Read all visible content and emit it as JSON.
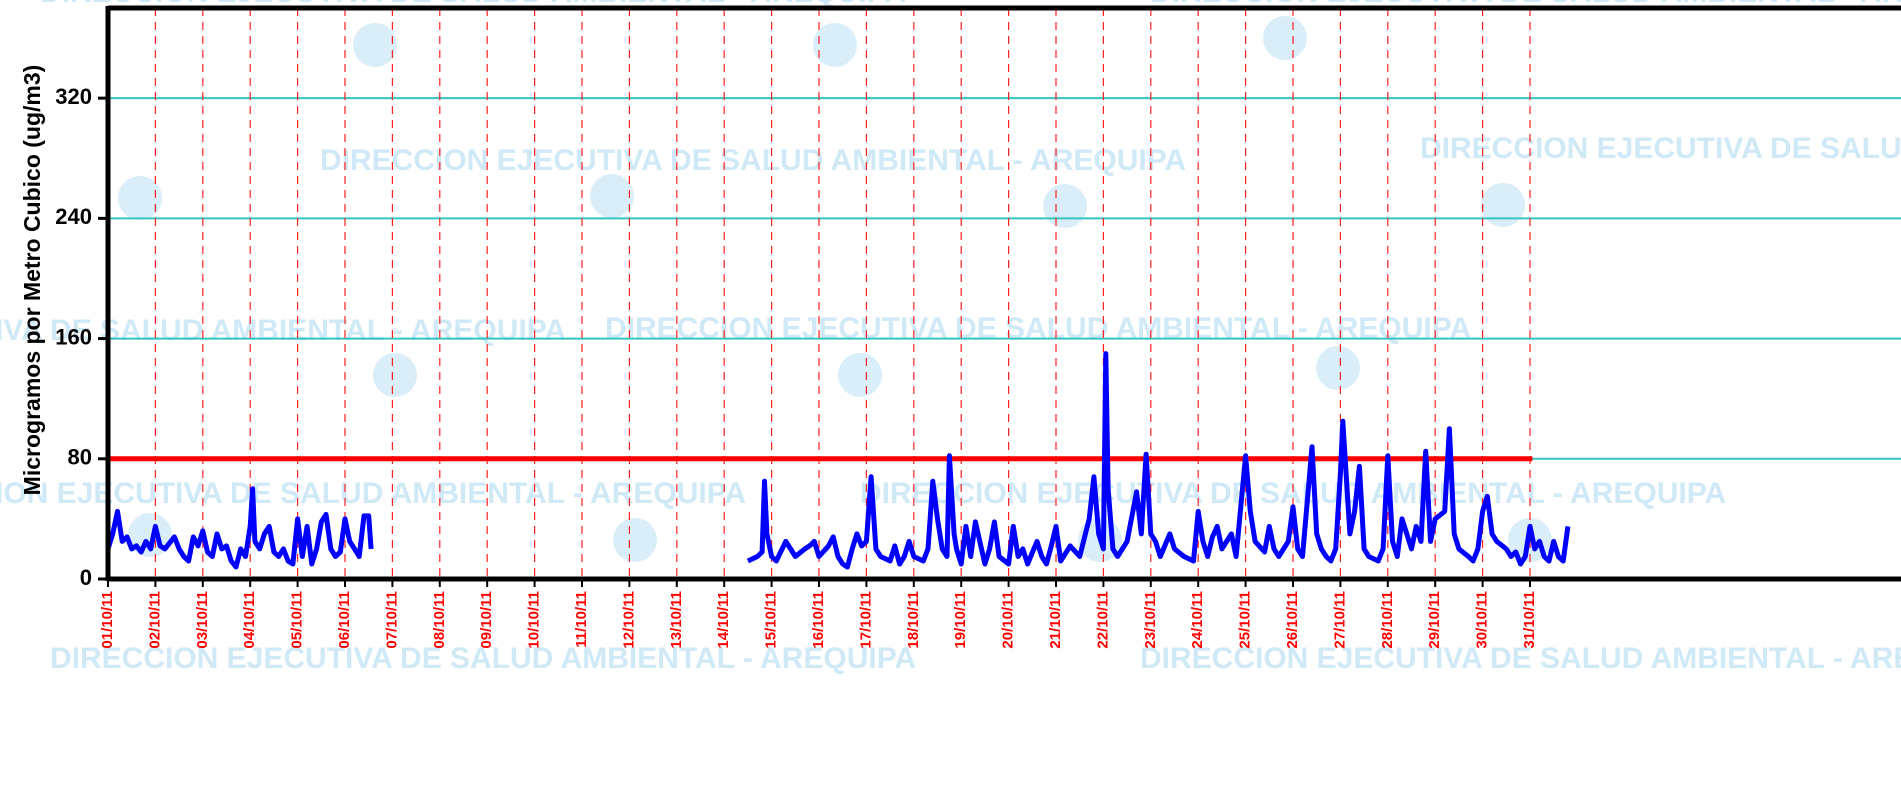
{
  "chart_data": {
    "type": "line",
    "y_label": "Microgramos por Metro Cubico (ug/m3)",
    "watermark": "DIRECCION EJECUTIVA DE SALUD AMBIENTAL - AREQUIPA",
    "xlim": [
      0,
      30.8
    ],
    "ylim": [
      0,
      380
    ],
    "yticks": [
      0,
      80,
      160,
      240,
      320
    ],
    "xticks": [
      {
        "value": 0,
        "label": "01/10/11"
      },
      {
        "value": 1,
        "label": "02/10/11"
      },
      {
        "value": 2,
        "label": "03/10/11"
      },
      {
        "value": 3,
        "label": "04/10/11"
      },
      {
        "value": 4,
        "label": "05/10/11"
      },
      {
        "value": 5,
        "label": "06/10/11"
      },
      {
        "value": 6,
        "label": "07/10/11"
      },
      {
        "value": 7,
        "label": "08/10/11"
      },
      {
        "value": 8,
        "label": "09/10/11"
      },
      {
        "value": 9,
        "label": "10/10/11"
      },
      {
        "value": 10,
        "label": "11/10/11"
      },
      {
        "value": 11,
        "label": "12/10/11"
      },
      {
        "value": 12,
        "label": "13/10/11"
      },
      {
        "value": 13,
        "label": "14/10/11"
      },
      {
        "value": 14,
        "label": "15/10/11"
      },
      {
        "value": 15,
        "label": "16/10/11"
      },
      {
        "value": 16,
        "label": "17/10/11"
      },
      {
        "value": 17,
        "label": "18/10/11"
      },
      {
        "value": 18,
        "label": "19/10/11"
      },
      {
        "value": 19,
        "label": "20/10/11"
      },
      {
        "value": 20,
        "label": "21/10/11"
      },
      {
        "value": 21,
        "label": "22/10/11"
      },
      {
        "value": 22,
        "label": "23/10/11"
      },
      {
        "value": 23,
        "label": "24/10/11"
      },
      {
        "value": 24,
        "label": "25/10/11"
      },
      {
        "value": 25,
        "label": "26/10/11"
      },
      {
        "value": 26,
        "label": "27/10/11"
      },
      {
        "value": 27,
        "label": "28/10/11"
      },
      {
        "value": 28,
        "label": "29/10/11"
      },
      {
        "value": 29,
        "label": "30/10/11"
      },
      {
        "value": 30,
        "label": "31/10/11"
      }
    ],
    "grid": true,
    "reference_line": {
      "value": 80,
      "color": "#ff0000",
      "x": [
        0,
        30.05
      ]
    },
    "x": [
      0.0,
      0.1,
      0.2,
      0.3,
      0.4,
      0.5,
      0.6,
      0.7,
      0.8,
      0.9,
      1.0,
      1.1,
      1.2,
      1.3,
      1.4,
      1.5,
      1.6,
      1.7,
      1.8,
      1.9,
      2.0,
      2.1,
      2.2,
      2.3,
      2.4,
      2.5,
      2.6,
      2.7,
      2.8,
      2.9,
      3.0,
      3.05,
      3.1,
      3.2,
      3.3,
      3.4,
      3.5,
      3.6,
      3.7,
      3.8,
      3.9,
      4.0,
      4.1,
      4.2,
      4.3,
      4.4,
      4.5,
      4.6,
      4.7,
      4.8,
      4.9,
      5.0,
      5.1,
      5.2,
      5.3,
      5.4,
      5.5,
      5.55,
      6.0,
      13.5,
      13.7,
      13.8,
      13.85,
      13.9,
      14.0,
      14.1,
      14.3,
      14.4,
      14.5,
      14.7,
      14.8,
      14.9,
      15.0,
      15.2,
      15.3,
      15.4,
      15.5,
      15.6,
      15.7,
      15.8,
      15.9,
      16.0,
      16.1,
      16.2,
      16.3,
      16.5,
      16.6,
      16.7,
      16.8,
      16.9,
      17.0,
      17.2,
      17.3,
      17.4,
      17.5,
      17.6,
      17.7,
      17.75,
      17.85,
      17.9,
      18.0,
      18.1,
      18.2,
      18.3,
      18.5,
      18.6,
      18.7,
      18.8,
      19.0,
      19.1,
      19.2,
      19.3,
      19.4,
      19.6,
      19.7,
      19.8,
      19.9,
      20.0,
      20.1,
      20.3,
      20.5,
      20.7,
      20.8,
      20.9,
      21.0,
      21.05,
      21.1,
      21.2,
      21.3,
      21.5,
      21.7,
      21.8,
      21.9,
      22.0,
      22.1,
      22.2,
      22.4,
      22.5,
      22.7,
      22.9,
      23.0,
      23.1,
      23.2,
      23.3,
      23.4,
      23.5,
      23.7,
      23.8,
      24.0,
      24.1,
      24.2,
      24.4,
      24.5,
      24.6,
      24.7,
      24.9,
      25.0,
      25.1,
      25.2,
      25.4,
      25.5,
      25.6,
      25.7,
      25.8,
      25.9,
      26.0,
      26.05,
      26.2,
      26.3,
      26.4,
      26.5,
      26.6,
      26.8,
      26.9,
      27.0,
      27.1,
      27.2,
      27.3,
      27.4,
      27.5,
      27.6,
      27.7,
      27.8,
      27.9,
      28.0,
      28.2,
      28.3,
      28.4,
      28.5,
      28.7,
      28.8,
      28.9,
      29.0,
      29.1,
      29.2,
      29.3,
      29.5,
      29.6,
      29.7,
      29.8,
      29.9,
      30.0,
      30.1,
      30.2,
      30.3,
      30.4,
      30.5,
      30.6,
      30.7,
      30.8
    ],
    "series": [
      {
        "color": "#0000ff",
        "values": [
          20,
          30,
          45,
          25,
          28,
          20,
          22,
          18,
          25,
          20,
          35,
          22,
          20,
          24,
          28,
          20,
          15,
          12,
          28,
          22,
          32,
          18,
          15,
          30,
          20,
          22,
          12,
          8,
          20,
          15,
          35,
          60,
          25,
          20,
          30,
          35,
          18,
          15,
          20,
          12,
          10,
          40,
          15,
          35,
          10,
          20,
          38,
          43,
          20,
          15,
          18,
          40,
          25,
          20,
          15,
          42,
          42,
          20,
          null,
          12,
          15,
          18,
          65,
          30,
          15,
          12,
          25,
          20,
          15,
          20,
          22,
          25,
          15,
          22,
          28,
          15,
          10,
          8,
          20,
          30,
          22,
          25,
          68,
          20,
          15,
          12,
          22,
          10,
          15,
          25,
          15,
          12,
          20,
          65,
          40,
          20,
          15,
          82,
          30,
          20,
          10,
          35,
          15,
          38,
          10,
          20,
          38,
          15,
          10,
          35,
          15,
          20,
          10,
          25,
          15,
          10,
          22,
          35,
          12,
          22,
          15,
          40,
          68,
          30,
          20,
          150,
          60,
          20,
          15,
          25,
          58,
          30,
          83,
          30,
          25,
          15,
          30,
          20,
          15,
          12,
          45,
          25,
          15,
          28,
          35,
          20,
          30,
          15,
          82,
          45,
          25,
          18,
          35,
          20,
          15,
          25,
          48,
          20,
          15,
          88,
          30,
          20,
          15,
          12,
          20,
          70,
          105,
          30,
          45,
          75,
          20,
          15,
          12,
          20,
          82,
          25,
          15,
          40,
          30,
          20,
          35,
          25,
          85,
          25,
          40,
          45,
          100,
          30,
          20,
          15,
          12,
          20,
          45,
          55,
          30,
          25,
          20,
          15,
          18,
          10,
          15,
          35,
          20,
          25,
          15,
          12,
          25,
          15,
          12,
          35
        ]
      }
    ]
  }
}
